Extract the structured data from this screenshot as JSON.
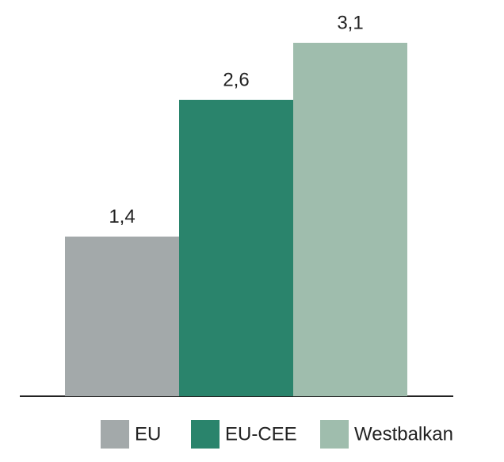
{
  "chart_data": {
    "type": "bar",
    "categories": [
      null
    ],
    "series": [
      {
        "name": "EU",
        "color": "#a3a9aa",
        "values": [
          1.4
        ],
        "value_labels": [
          "1,4"
        ]
      },
      {
        "name": "EU-CEE",
        "color": "#2a846c",
        "values": [
          2.6
        ],
        "value_labels": [
          "2,6"
        ]
      },
      {
        "name": "Westbalkan",
        "color": "#9fbdad",
        "values": [
          3.1
        ],
        "value_labels": [
          "3,1"
        ]
      }
    ],
    "legend": "bottom"
  }
}
